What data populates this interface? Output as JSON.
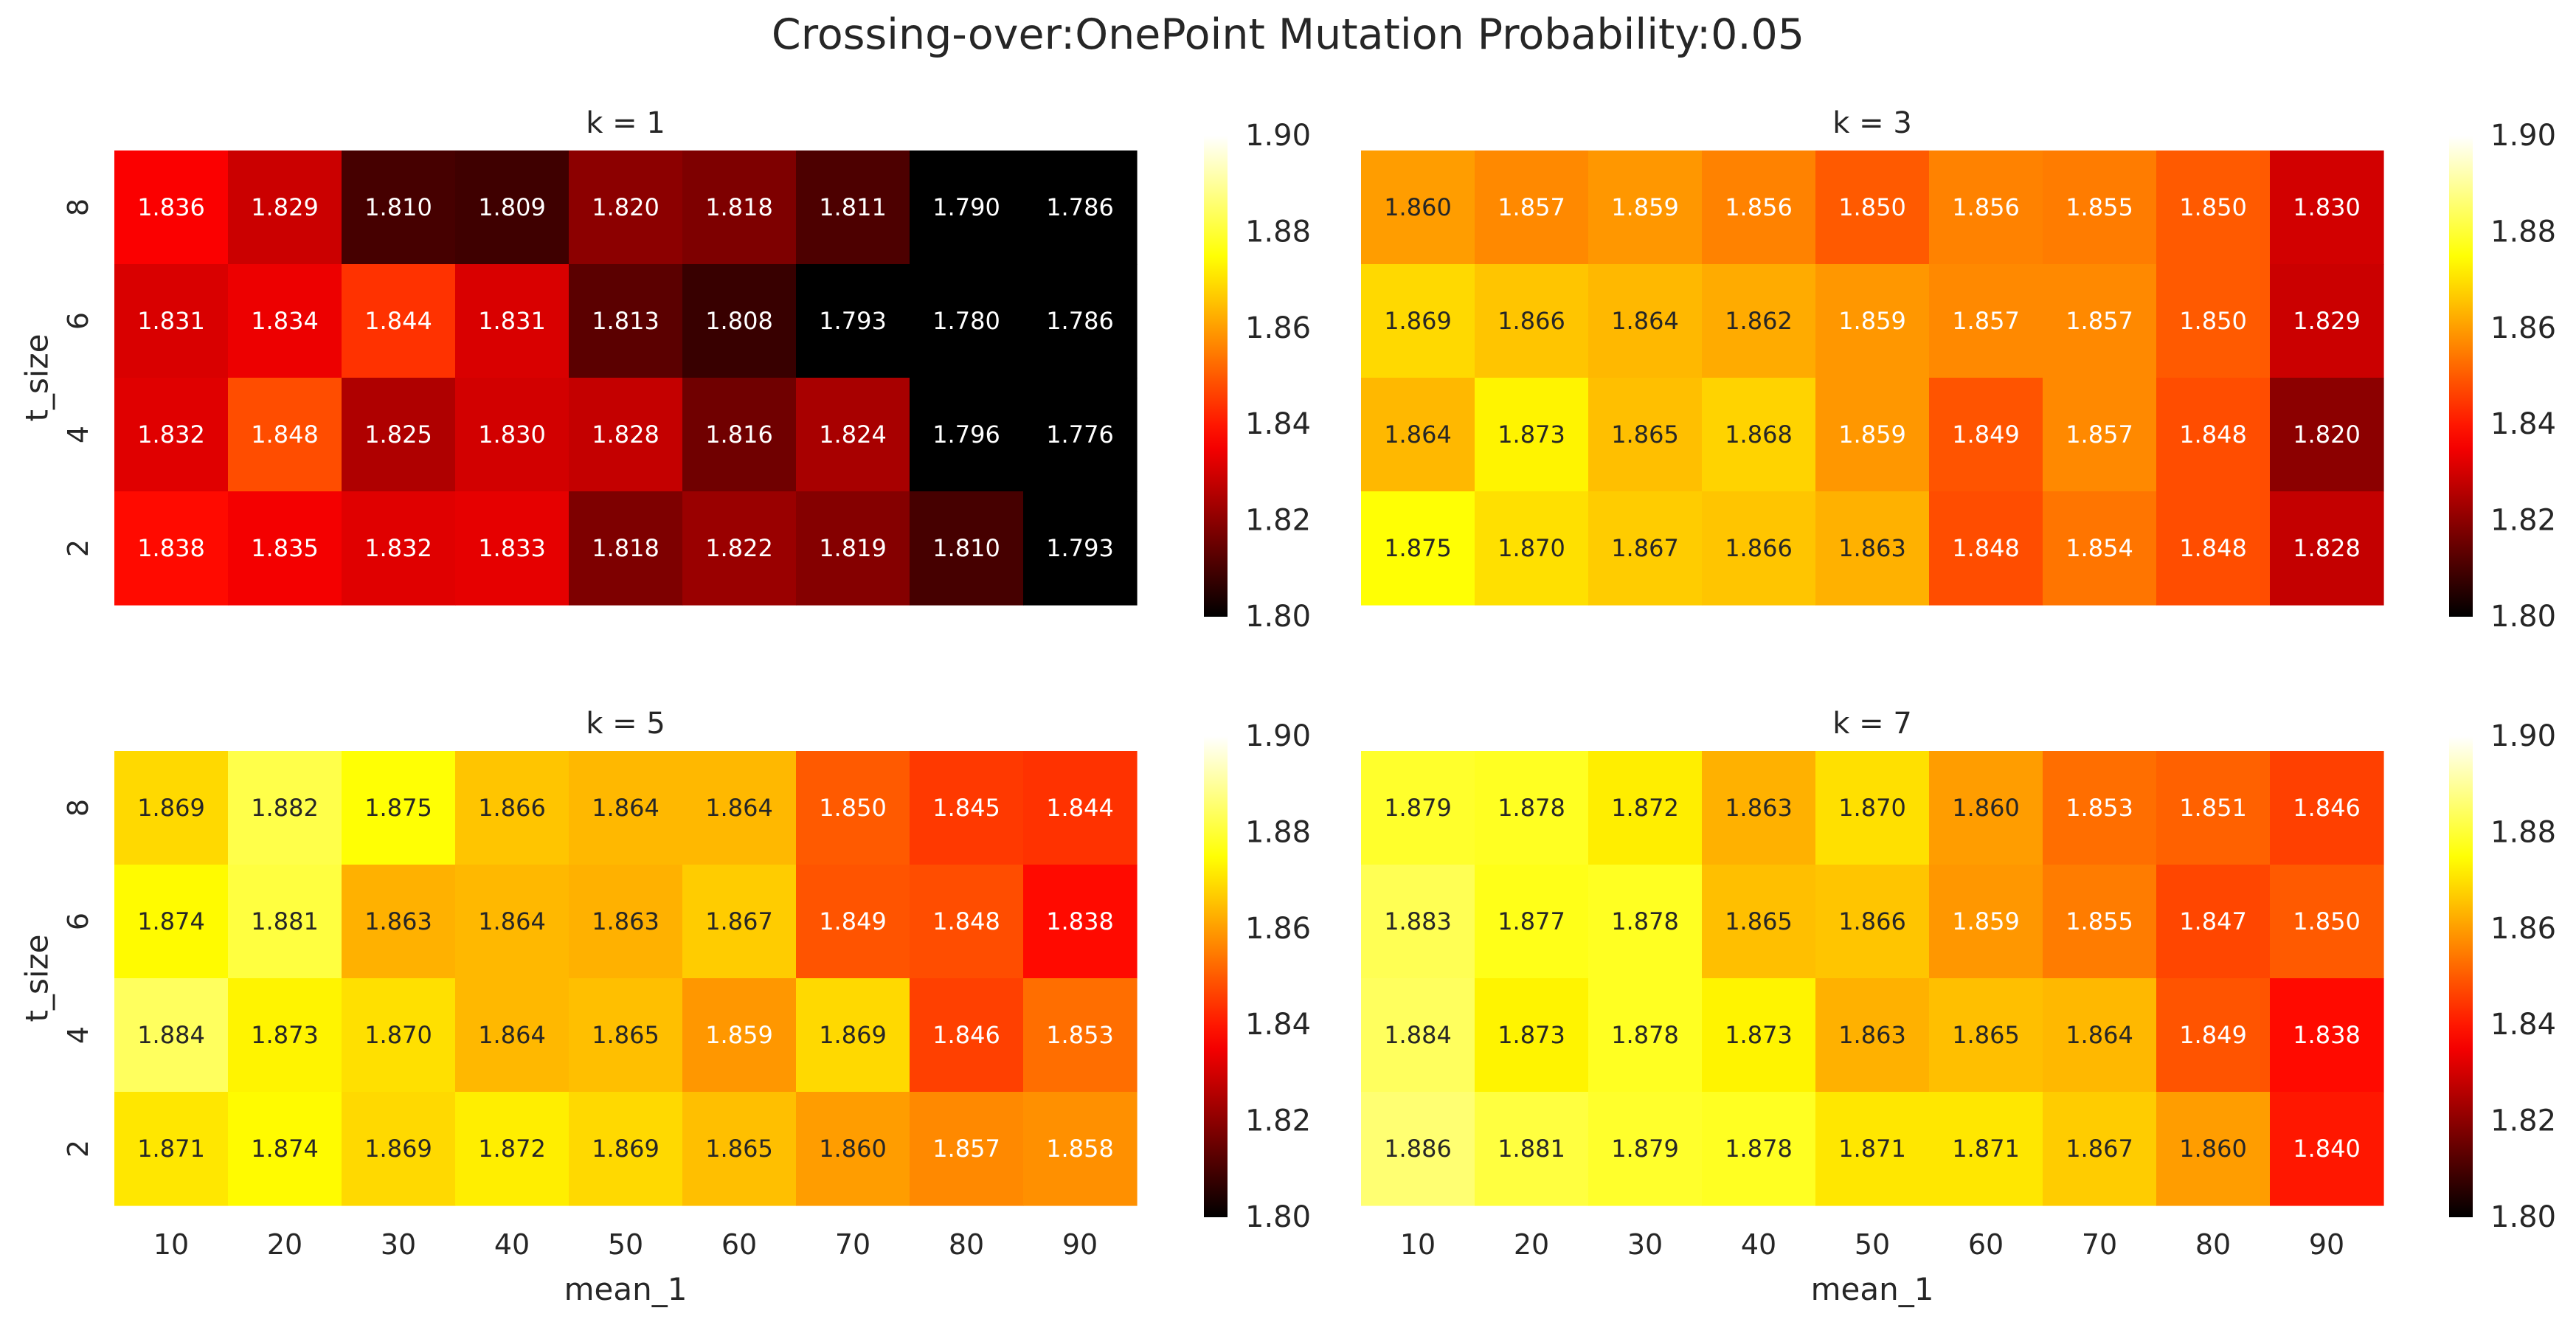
{
  "figure": {
    "title": "Crossing-over:OnePoint Mutation Probability:0.05"
  },
  "chart_data": [
    {
      "type": "heatmap",
      "title": "k = 1",
      "xlabel": "",
      "ylabel": "t_size",
      "x_categories": [
        "10",
        "20",
        "30",
        "40",
        "50",
        "60",
        "70",
        "80",
        "90"
      ],
      "y_categories": [
        "8",
        "6",
        "4",
        "2"
      ],
      "values": [
        [
          "1.836",
          "1.829",
          "1.810",
          "1.809",
          "1.820",
          "1.818",
          "1.811",
          "1.790",
          "1.786"
        ],
        [
          "1.831",
          "1.834",
          "1.844",
          "1.831",
          "1.813",
          "1.808",
          "1.793",
          "1.780",
          "1.786"
        ],
        [
          "1.832",
          "1.848",
          "1.825",
          "1.830",
          "1.828",
          "1.816",
          "1.824",
          "1.796",
          "1.776"
        ],
        [
          "1.838",
          "1.835",
          "1.832",
          "1.833",
          "1.818",
          "1.822",
          "1.819",
          "1.810",
          "1.793"
        ]
      ],
      "colorbar": {
        "range": [
          1.8,
          1.9
        ],
        "ticks": [
          "1.80",
          "1.82",
          "1.84",
          "1.86",
          "1.88",
          "1.90"
        ],
        "colormap": "hot"
      }
    },
    {
      "type": "heatmap",
      "title": "k = 3",
      "xlabel": "",
      "ylabel": "",
      "x_categories": [
        "10",
        "20",
        "30",
        "40",
        "50",
        "60",
        "70",
        "80",
        "90"
      ],
      "y_categories": [
        "8",
        "6",
        "4",
        "2"
      ],
      "values": [
        [
          "1.860",
          "1.857",
          "1.859",
          "1.856",
          "1.850",
          "1.856",
          "1.855",
          "1.850",
          "1.830"
        ],
        [
          "1.869",
          "1.866",
          "1.864",
          "1.862",
          "1.859",
          "1.857",
          "1.857",
          "1.850",
          "1.829"
        ],
        [
          "1.864",
          "1.873",
          "1.865",
          "1.868",
          "1.859",
          "1.849",
          "1.857",
          "1.848",
          "1.820"
        ],
        [
          "1.875",
          "1.870",
          "1.867",
          "1.866",
          "1.863",
          "1.848",
          "1.854",
          "1.848",
          "1.828"
        ]
      ],
      "colorbar": {
        "range": [
          1.8,
          1.9
        ],
        "ticks": [
          "1.80",
          "1.82",
          "1.84",
          "1.86",
          "1.88",
          "1.90"
        ],
        "colormap": "hot"
      }
    },
    {
      "type": "heatmap",
      "title": "k = 5",
      "xlabel": "mean_1",
      "ylabel": "t_size",
      "x_categories": [
        "10",
        "20",
        "30",
        "40",
        "50",
        "60",
        "70",
        "80",
        "90"
      ],
      "y_categories": [
        "8",
        "6",
        "4",
        "2"
      ],
      "values": [
        [
          "1.869",
          "1.882",
          "1.875",
          "1.866",
          "1.864",
          "1.864",
          "1.850",
          "1.845",
          "1.844"
        ],
        [
          "1.874",
          "1.881",
          "1.863",
          "1.864",
          "1.863",
          "1.867",
          "1.849",
          "1.848",
          "1.838"
        ],
        [
          "1.884",
          "1.873",
          "1.870",
          "1.864",
          "1.865",
          "1.859",
          "1.869",
          "1.846",
          "1.853"
        ],
        [
          "1.871",
          "1.874",
          "1.869",
          "1.872",
          "1.869",
          "1.865",
          "1.860",
          "1.857",
          "1.858"
        ]
      ],
      "colorbar": {
        "range": [
          1.8,
          1.9
        ],
        "ticks": [
          "1.80",
          "1.82",
          "1.84",
          "1.86",
          "1.88",
          "1.90"
        ],
        "colormap": "hot"
      }
    },
    {
      "type": "heatmap",
      "title": "k = 7",
      "xlabel": "mean_1",
      "ylabel": "",
      "x_categories": [
        "10",
        "20",
        "30",
        "40",
        "50",
        "60",
        "70",
        "80",
        "90"
      ],
      "y_categories": [
        "8",
        "6",
        "4",
        "2"
      ],
      "values": [
        [
          "1.879",
          "1.878",
          "1.872",
          "1.863",
          "1.870",
          "1.860",
          "1.853",
          "1.851",
          "1.846"
        ],
        [
          "1.883",
          "1.877",
          "1.878",
          "1.865",
          "1.866",
          "1.859",
          "1.855",
          "1.847",
          "1.850"
        ],
        [
          "1.884",
          "1.873",
          "1.878",
          "1.873",
          "1.863",
          "1.865",
          "1.864",
          "1.849",
          "1.838"
        ],
        [
          "1.886",
          "1.881",
          "1.879",
          "1.878",
          "1.871",
          "1.871",
          "1.867",
          "1.860",
          "1.840"
        ]
      ],
      "colorbar": {
        "range": [
          1.8,
          1.9
        ],
        "ticks": [
          "1.80",
          "1.82",
          "1.84",
          "1.86",
          "1.88",
          "1.90"
        ],
        "colormap": "hot"
      }
    }
  ]
}
